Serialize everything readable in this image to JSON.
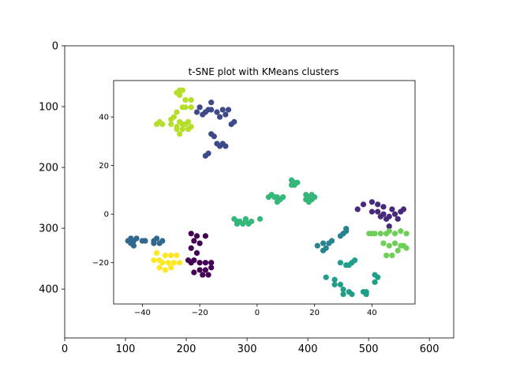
{
  "chart_data": [
    {
      "type": "image",
      "title": "",
      "xlim": [
        0,
        640
      ],
      "ylim": [
        480,
        0
      ],
      "x_ticks": [
        "0",
        "100",
        "200",
        "300",
        "400",
        "500",
        "600"
      ],
      "y_ticks": [
        "0",
        "100",
        "200",
        "300",
        "400"
      ],
      "grid": false
    },
    {
      "type": "scatter",
      "title": "t-SNE plot with KMeans clusters",
      "xlabel": "",
      "ylabel": "",
      "xlim": [
        -50,
        55
      ],
      "ylim": [
        -37,
        55
      ],
      "x_ticks": [
        "−40",
        "−20",
        "0",
        "20",
        "40"
      ],
      "y_ticks": [
        "−20",
        "0",
        "20",
        "40"
      ],
      "grid": false,
      "legend": "none",
      "series": [
        {
          "color": "#440154",
          "points": [
            [
              -23,
              -8
            ],
            [
              -21,
              -9
            ],
            [
              -18,
              -9
            ],
            [
              -22,
              -11
            ],
            [
              -20,
              -12
            ],
            [
              -23,
              -14
            ],
            [
              -21,
              -16
            ],
            [
              -24,
              -19
            ],
            [
              -22,
              -19
            ],
            [
              -20,
              -20
            ],
            [
              -18,
              -20
            ],
            [
              -16,
              -20
            ],
            [
              -23,
              -20
            ],
            [
              -16,
              -22
            ],
            [
              -18,
              -23
            ],
            [
              -20,
              -23
            ],
            [
              -22,
              -24
            ],
            [
              -17,
              -25
            ],
            [
              -19,
              -25
            ]
          ]
        },
        {
          "color": "#482878",
          "points": [
            [
              37,
              4
            ],
            [
              35,
              2
            ],
            [
              40,
              5
            ],
            [
              42,
              4
            ],
            [
              44,
              3
            ],
            [
              40,
              1
            ],
            [
              42,
              1
            ],
            [
              44,
              0
            ],
            [
              46,
              -1
            ],
            [
              48,
              0
            ],
            [
              50,
              1
            ],
            [
              51,
              2
            ],
            [
              47,
              2
            ],
            [
              43,
              -1
            ],
            [
              45,
              -2
            ],
            [
              46,
              -5
            ],
            [
              49,
              -2
            ]
          ]
        },
        {
          "color": "#3e4989",
          "points": [
            [
              -21,
              42
            ],
            [
              -20,
              44
            ],
            [
              -18,
              42
            ],
            [
              -17,
              43
            ],
            [
              -16,
              46
            ],
            [
              -16,
              43
            ],
            [
              -14,
              42
            ],
            [
              -13,
              40
            ],
            [
              -12,
              43
            ],
            [
              -10,
              43
            ],
            [
              -11,
              41
            ],
            [
              -9,
              37
            ],
            [
              -8,
              38
            ],
            [
              -19,
              41
            ],
            [
              -15,
              32
            ],
            [
              -16,
              33
            ],
            [
              -14,
              29
            ],
            [
              -12,
              29
            ],
            [
              -11,
              28
            ],
            [
              -13,
              28
            ],
            [
              -17,
              25
            ],
            [
              -18,
              24
            ]
          ]
        },
        {
          "color": "#31688e",
          "points": [
            [
              -44,
              -10
            ],
            [
              -43,
              -11
            ],
            [
              -45,
              -11
            ],
            [
              -42,
              -10
            ],
            [
              -40,
              -11
            ],
            [
              -39,
              -11
            ],
            [
              -44,
              -12
            ],
            [
              -43,
              -13
            ],
            [
              -36,
              -11
            ],
            [
              -35,
              -10
            ],
            [
              -33,
              -11
            ],
            [
              -36,
              -12
            ],
            [
              -34,
              -12
            ]
          ]
        },
        {
          "color": "#26828e",
          "points": [
            [
              21,
              -13
            ],
            [
              23,
              -12
            ],
            [
              25,
              -12
            ],
            [
              24,
              -14
            ],
            [
              26,
              -11
            ],
            [
              23,
              -15
            ],
            [
              31,
              -7
            ],
            [
              30,
              -8
            ],
            [
              31,
              -6
            ],
            [
              29,
              -9
            ]
          ]
        },
        {
          "color": "#1f9e89",
          "points": [
            [
              24,
              -26
            ],
            [
              27,
              -27
            ],
            [
              27,
              -29
            ],
            [
              29,
              -29
            ],
            [
              30,
              -31
            ],
            [
              32,
              -32
            ],
            [
              30,
              -33
            ],
            [
              33,
              -33
            ],
            [
              29,
              -20
            ],
            [
              31,
              -21
            ],
            [
              33,
              -20
            ],
            [
              34,
              -19
            ],
            [
              32,
              -21
            ],
            [
              37,
              -32
            ],
            [
              38,
              -32
            ],
            [
              38,
              -33
            ],
            [
              41,
              -28
            ],
            [
              42,
              -26
            ],
            [
              41,
              -25
            ]
          ]
        },
        {
          "color": "#35b779",
          "points": [
            [
              -8,
              -2
            ],
            [
              -7,
              -3
            ],
            [
              -6,
              -3
            ],
            [
              -5,
              -4
            ],
            [
              -4,
              -3
            ],
            [
              -3,
              -4
            ],
            [
              -2,
              -3
            ],
            [
              -4,
              -2
            ],
            [
              -7,
              -4
            ],
            [
              1,
              -2
            ],
            [
              4,
              7
            ],
            [
              6,
              7
            ],
            [
              5,
              8
            ],
            [
              7,
              7
            ],
            [
              8,
              6
            ],
            [
              9,
              7
            ],
            [
              7,
              5
            ],
            [
              12,
              12
            ],
            [
              13,
              13
            ],
            [
              12,
              14
            ],
            [
              13,
              12
            ],
            [
              14,
              13
            ],
            [
              17,
              8
            ],
            [
              18,
              7
            ],
            [
              19,
              8
            ],
            [
              17,
              6
            ],
            [
              18,
              5
            ],
            [
              19,
              6
            ],
            [
              20,
              7
            ]
          ]
        },
        {
          "color": "#6ece58",
          "points": [
            [
              39,
              -8
            ],
            [
              40,
              -8
            ],
            [
              41,
              -8
            ],
            [
              43,
              -8
            ],
            [
              45,
              -8
            ],
            [
              46,
              -7
            ],
            [
              48,
              -8
            ],
            [
              50,
              -7
            ],
            [
              52,
              -8
            ],
            [
              44,
              -12
            ],
            [
              46,
              -13
            ],
            [
              48,
              -12
            ],
            [
              50,
              -13
            ],
            [
              52,
              -14
            ],
            [
              45,
              -17
            ],
            [
              47,
              -17
            ],
            [
              49,
              -15
            ],
            [
              51,
              -13
            ]
          ]
        },
        {
          "color": "#b5de2b",
          "points": [
            [
              -28,
              50
            ],
            [
              -27,
              51
            ],
            [
              -26,
              51
            ],
            [
              -27,
              49
            ],
            [
              -25,
              47
            ],
            [
              -26,
              44
            ],
            [
              -25,
              44
            ],
            [
              -23,
              44
            ],
            [
              -23,
              47
            ],
            [
              -28,
              42
            ],
            [
              -29,
              40
            ],
            [
              -30,
              39
            ],
            [
              -30,
              37
            ],
            [
              -28,
              36
            ],
            [
              -27,
              38
            ],
            [
              -26,
              37
            ],
            [
              -26,
              35
            ],
            [
              -25,
              37
            ],
            [
              -24,
              38
            ],
            [
              -23,
              36
            ],
            [
              -24,
              35
            ],
            [
              -33,
              37
            ],
            [
              -35,
              37
            ],
            [
              -34,
              38
            ],
            [
              -27,
              33
            ],
            [
              -28,
              35
            ]
          ]
        },
        {
          "color": "#fde725",
          "points": [
            [
              -35,
              -16
            ],
            [
              -34,
              -19
            ],
            [
              -36,
              -19
            ],
            [
              -32,
              -17
            ],
            [
              -30,
              -17
            ],
            [
              -28,
              -17
            ],
            [
              -33,
              -20
            ],
            [
              -31,
              -20
            ],
            [
              -29,
              -20
            ],
            [
              -27,
              -20
            ],
            [
              -30,
              -22
            ],
            [
              -32,
              -23
            ],
            [
              -34,
              -22
            ]
          ]
        }
      ]
    }
  ]
}
